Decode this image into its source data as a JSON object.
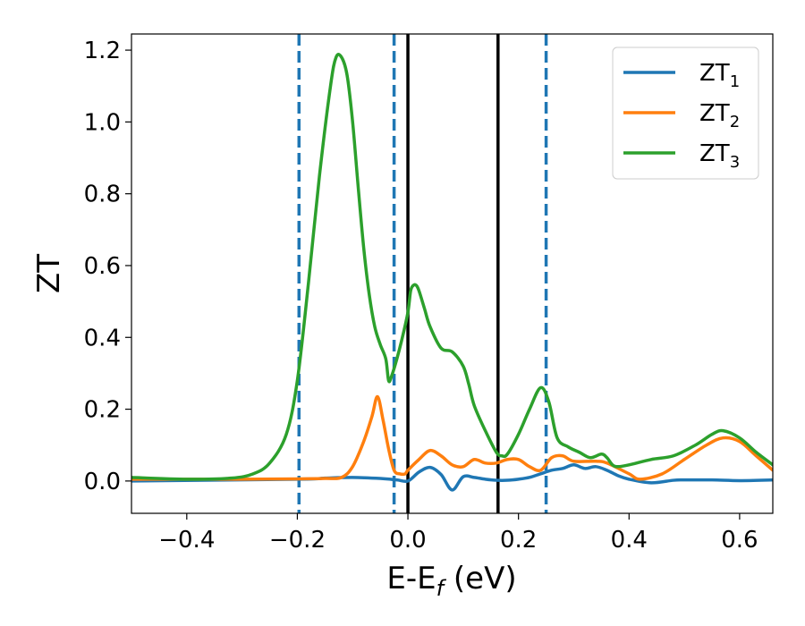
{
  "chart_data": {
    "type": "line",
    "title": "",
    "xlabel": "E-E",
    "xlabel_sub": "f",
    "xlabel_unit": " (eV)",
    "ylabel": "ZT",
    "xlim": [
      -0.5,
      0.66
    ],
    "ylim": [
      -0.09,
      1.245
    ],
    "x_ticks": [
      -0.4,
      -0.2,
      0.0,
      0.2,
      0.4,
      0.6
    ],
    "x_tick_labels": [
      "−0.4",
      "−0.2",
      "0.0",
      "0.2",
      "0.4",
      "0.6"
    ],
    "y_ticks": [
      0.0,
      0.2,
      0.4,
      0.6,
      0.8,
      1.0,
      1.2
    ],
    "y_tick_labels": [
      "0.0",
      "0.2",
      "0.4",
      "0.6",
      "0.8",
      "1.0",
      "1.2"
    ],
    "grid": false,
    "legend_position": "top-right",
    "vertical_lines": [
      {
        "x": -0.197,
        "style": "dashed",
        "color": "#1f77b4"
      },
      {
        "x": -0.025,
        "style": "dashed",
        "color": "#1f77b4"
      },
      {
        "x": 0.0,
        "style": "solid",
        "color": "#000000"
      },
      {
        "x": 0.163,
        "style": "solid",
        "color": "#000000"
      },
      {
        "x": 0.25,
        "style": "dashed",
        "color": "#1f77b4"
      }
    ],
    "series": [
      {
        "name": "ZT",
        "subscript": "1",
        "color": "#1f77b4",
        "x": [
          -0.5,
          -0.2,
          -0.15,
          -0.1,
          -0.05,
          -0.02,
          0.0,
          0.02,
          0.04,
          0.06,
          0.08,
          0.1,
          0.12,
          0.14,
          0.16,
          0.18,
          0.2,
          0.22,
          0.24,
          0.26,
          0.28,
          0.3,
          0.32,
          0.34,
          0.36,
          0.38,
          0.4,
          0.44,
          0.48,
          0.5,
          0.55,
          0.6,
          0.66
        ],
        "y": [
          0.0,
          0.005,
          0.008,
          0.01,
          0.007,
          0.003,
          0.0,
          0.025,
          0.038,
          0.018,
          -0.025,
          0.012,
          0.01,
          0.005,
          0.002,
          0.002,
          0.005,
          0.01,
          0.02,
          0.03,
          0.035,
          0.045,
          0.035,
          0.04,
          0.03,
          0.015,
          0.005,
          -0.005,
          0.002,
          0.003,
          0.003,
          0.001,
          0.003
        ]
      },
      {
        "name": "ZT",
        "subscript": "2",
        "color": "#ff7f0e",
        "x": [
          -0.5,
          -0.3,
          -0.2,
          -0.15,
          -0.12,
          -0.1,
          -0.08,
          -0.065,
          -0.055,
          -0.045,
          -0.035,
          -0.025,
          -0.015,
          -0.005,
          0.0,
          0.02,
          0.04,
          0.06,
          0.08,
          0.1,
          0.12,
          0.14,
          0.16,
          0.18,
          0.2,
          0.22,
          0.24,
          0.26,
          0.28,
          0.3,
          0.34,
          0.36,
          0.4,
          0.42,
          0.46,
          0.5,
          0.54,
          0.57,
          0.6,
          0.63,
          0.66
        ],
        "y": [
          0.005,
          0.005,
          0.006,
          0.007,
          0.01,
          0.04,
          0.11,
          0.18,
          0.235,
          0.17,
          0.09,
          0.03,
          0.02,
          0.02,
          0.03,
          0.06,
          0.085,
          0.07,
          0.045,
          0.04,
          0.06,
          0.05,
          0.05,
          0.06,
          0.06,
          0.04,
          0.03,
          0.065,
          0.07,
          0.055,
          0.055,
          0.05,
          0.02,
          0.005,
          0.02,
          0.06,
          0.1,
          0.12,
          0.11,
          0.07,
          0.03
        ]
      },
      {
        "name": "ZT",
        "subscript": "3",
        "color": "#2ca02c",
        "x": [
          -0.5,
          -0.4,
          -0.32,
          -0.28,
          -0.25,
          -0.22,
          -0.2,
          -0.18,
          -0.16,
          -0.14,
          -0.13,
          -0.12,
          -0.11,
          -0.1,
          -0.09,
          -0.08,
          -0.07,
          -0.06,
          -0.05,
          -0.04,
          -0.035,
          -0.03,
          -0.02,
          -0.01,
          0.0,
          0.005,
          0.01,
          0.015,
          0.02,
          0.03,
          0.04,
          0.06,
          0.08,
          0.1,
          0.11,
          0.12,
          0.14,
          0.16,
          0.17,
          0.18,
          0.2,
          0.22,
          0.24,
          0.255,
          0.27,
          0.29,
          0.31,
          0.33,
          0.35,
          0.36,
          0.37,
          0.38,
          0.4,
          0.44,
          0.48,
          0.52,
          0.55,
          0.57,
          0.6,
          0.63,
          0.66
        ],
        "y": [
          0.01,
          0.005,
          0.008,
          0.02,
          0.05,
          0.13,
          0.28,
          0.55,
          0.85,
          1.1,
          1.18,
          1.18,
          1.13,
          1.0,
          0.82,
          0.65,
          0.52,
          0.43,
          0.38,
          0.34,
          0.28,
          0.29,
          0.34,
          0.4,
          0.47,
          0.53,
          0.545,
          0.545,
          0.53,
          0.48,
          0.43,
          0.37,
          0.36,
          0.32,
          0.27,
          0.21,
          0.14,
          0.08,
          0.07,
          0.075,
          0.13,
          0.2,
          0.26,
          0.22,
          0.12,
          0.095,
          0.08,
          0.065,
          0.075,
          0.065,
          0.045,
          0.04,
          0.045,
          0.06,
          0.07,
          0.1,
          0.13,
          0.14,
          0.12,
          0.08,
          0.045
        ]
      }
    ]
  }
}
